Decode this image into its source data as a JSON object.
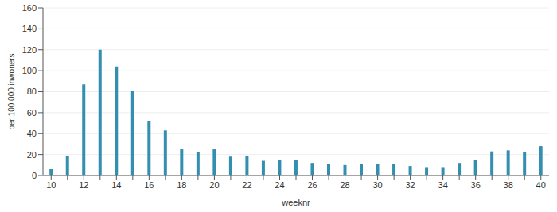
{
  "chart_data": {
    "type": "bar",
    "x_label": "weeknr",
    "y_label": "per 100.000 inwoners",
    "categories": [
      "10",
      null,
      "12",
      null,
      "14",
      null,
      "16",
      null,
      "18",
      null,
      "20",
      null,
      "22",
      null,
      "24",
      null,
      "26",
      null,
      "28",
      null,
      "30",
      null,
      "32",
      null,
      "34",
      null,
      "36",
      null,
      "38",
      null,
      "40"
    ],
    "values": [
      6,
      19,
      87,
      120,
      104,
      81,
      52,
      43,
      25,
      22,
      25,
      18,
      19,
      14,
      15,
      15,
      12,
      11,
      10,
      11,
      11,
      11,
      9,
      8,
      8,
      12,
      15,
      23,
      24,
      22,
      28
    ],
    "color": "#338fb0",
    "ylim": [
      0,
      160
    ],
    "yticks": [
      0,
      20,
      40,
      60,
      80,
      100,
      120,
      140,
      160
    ],
    "grid": true
  }
}
